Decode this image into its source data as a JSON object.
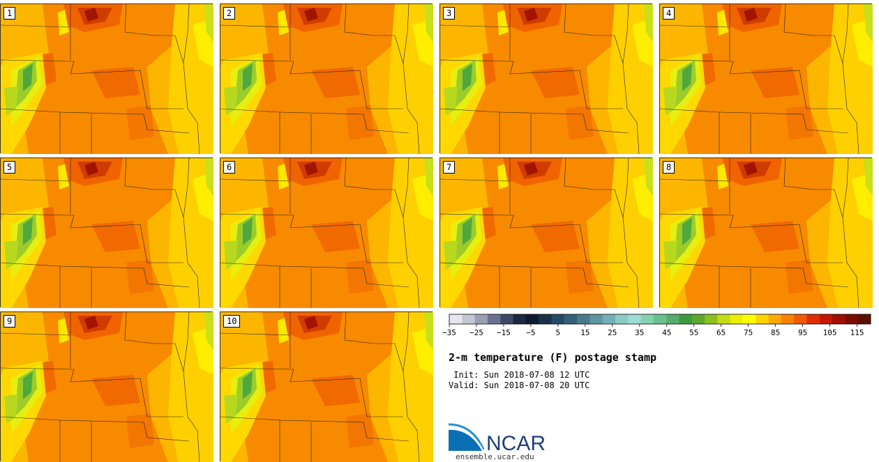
{
  "panels": [
    {
      "label": "1"
    },
    {
      "label": "2"
    },
    {
      "label": "3"
    },
    {
      "label": "4"
    },
    {
      "label": "5"
    },
    {
      "label": "6"
    },
    {
      "label": "7"
    },
    {
      "label": "8"
    },
    {
      "label": "9"
    },
    {
      "label": "10"
    }
  ],
  "colorbar": {
    "colors": [
      "#e6e6ee",
      "#c4c6d2",
      "#9b9fb2",
      "#6b7290",
      "#3e4868",
      "#1c2842",
      "#0e1a30",
      "#18304a",
      "#264a66",
      "#356178",
      "#4b7a8c",
      "#5e95a2",
      "#72b0b6",
      "#8ccac6",
      "#a0dcd6",
      "#86d0b0",
      "#6ac08e",
      "#55ad6d",
      "#3f9a3e",
      "#5ea832",
      "#8cc020",
      "#c4dc14",
      "#ecf000",
      "#ffff00",
      "#ffd200",
      "#ffa800",
      "#f88200",
      "#f05a00",
      "#e02e00",
      "#c41800",
      "#a01000",
      "#7c0c00",
      "#5c1000"
    ],
    "tick_labels": [
      "−35",
      "−25",
      "−15",
      "−5",
      "5",
      "15",
      "25",
      "35",
      "45",
      "55",
      "65",
      "75",
      "85",
      "95",
      "105",
      "115"
    ]
  },
  "title": "2-m temperature (F) postage stamp",
  "init_line": " Init: Sun 2018-07-08 12 UTC",
  "valid_line": "Valid: Sun 2018-07-08 20 UTC",
  "logo_text": "NCAR",
  "logo_url": "ensemble.ucar.edu"
}
